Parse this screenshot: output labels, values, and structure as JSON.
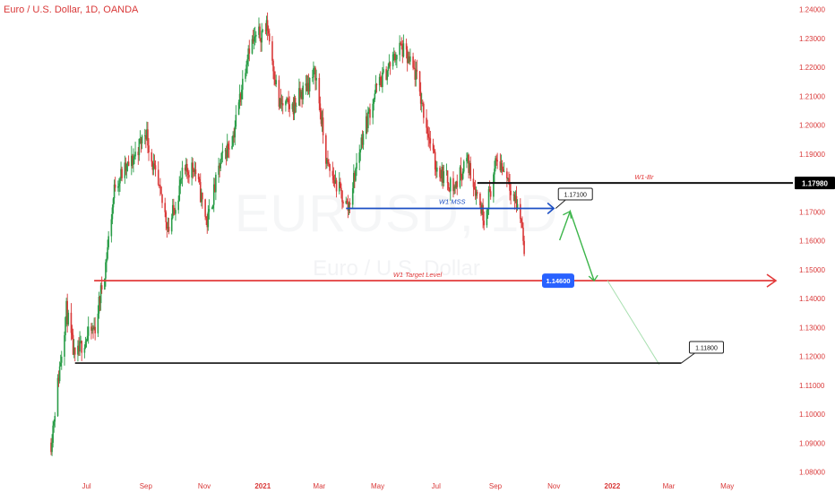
{
  "chart_title": "Euro / U.S. Dollar, 1D, OANDA",
  "watermark": {
    "symbol": "EURUSD, 1D",
    "name": "Euro / U.S. Dollar"
  },
  "colors": {
    "up": "#2a9d48",
    "down": "#d93838",
    "axis_text": "#d93838",
    "target": "#e23a3a",
    "mss": "#1c4fc4",
    "breaker": "#111111",
    "projection": "#3cb54a",
    "label_blue": "#2962ff"
  },
  "chart_data": {
    "type": "candlestick",
    "title": "Euro / U.S. Dollar, 1D, OANDA",
    "ylim": [
      1.08,
      1.24
    ],
    "y_ticks": [
      "1.08000",
      "1.09000",
      "1.10000",
      "1.11000",
      "1.12000",
      "1.13000",
      "1.14000",
      "1.15000",
      "1.16000",
      "1.17000",
      "1.18000",
      "1.19000",
      "1.20000",
      "1.21000",
      "1.22000",
      "1.23000",
      "1.24000"
    ],
    "x_ticks": [
      "Jul",
      "Sep",
      "Nov",
      "2021",
      "Mar",
      "May",
      "Jul",
      "Sep",
      "Nov",
      "2022",
      "Mar",
      "May"
    ],
    "x_range": [
      "2020-05-25",
      "2022-06-15"
    ],
    "price_path": [
      [
        "2020-05-25",
        1.09
      ],
      [
        "2020-06-03",
        1.116
      ],
      [
        "2020-06-10",
        1.136
      ],
      [
        "2020-06-19",
        1.118
      ],
      [
        "2020-06-26",
        1.124
      ],
      [
        "2020-07-10",
        1.13
      ],
      [
        "2020-07-21",
        1.152
      ],
      [
        "2020-07-31",
        1.18
      ],
      [
        "2020-08-17",
        1.187
      ],
      [
        "2020-09-01",
        1.198
      ],
      [
        "2020-09-10",
        1.183
      ],
      [
        "2020-09-25",
        1.164
      ],
      [
        "2020-10-09",
        1.182
      ],
      [
        "2020-10-21",
        1.186
      ],
      [
        "2020-11-04",
        1.166
      ],
      [
        "2020-11-18",
        1.187
      ],
      [
        "2020-12-01",
        1.196
      ],
      [
        "2020-12-10",
        1.213
      ],
      [
        "2020-12-17",
        1.227
      ],
      [
        "2021-01-06",
        1.234
      ],
      [
        "2021-01-18",
        1.207
      ],
      [
        "2021-02-01",
        1.206
      ],
      [
        "2021-02-25",
        1.218
      ],
      [
        "2021-03-09",
        1.186
      ],
      [
        "2021-03-31",
        1.171
      ],
      [
        "2021-04-15",
        1.196
      ],
      [
        "2021-04-29",
        1.212
      ],
      [
        "2021-05-25",
        1.227
      ],
      [
        "2021-06-10",
        1.217
      ],
      [
        "2021-06-30",
        1.186
      ],
      [
        "2021-07-20",
        1.178
      ],
      [
        "2021-08-02",
        1.188
      ],
      [
        "2021-08-20",
        1.168
      ],
      [
        "2021-09-03",
        1.188
      ],
      [
        "2021-09-14",
        1.182
      ],
      [
        "2021-09-28",
        1.167
      ],
      [
        "2021-10-01",
        1.158
      ]
    ],
    "annotations": {
      "breaker": {
        "label": "W1-Br",
        "price": 1.1798,
        "price_label": "1.17980",
        "from": "2021-08-13",
        "to": "2022-06-15"
      },
      "mss": {
        "label": "W1 MSS",
        "price": 1.171,
        "from": "2021-03-29",
        "to": "2021-10-31"
      },
      "mss_callout": {
        "text": "1.17100",
        "date": "2021-11-01",
        "price": 1.171
      },
      "target": {
        "label": "W1 Target Level",
        "price": 1.146,
        "price_label": "1.14600",
        "from": "2020-07-09",
        "to": "2022-06-15"
      },
      "low_line": {
        "from_date": "2020-06-19",
        "from_price": 1.1175,
        "to_date": "2022-03-14",
        "to_price": 1.1175
      },
      "low_callout": {
        "text": "1.11800",
        "date": "2022-03-15",
        "price": 1.118
      },
      "projection": [
        [
          "2021-11-07",
          1.16
        ],
        [
          "2021-11-18",
          1.17
        ],
        [
          "2021-12-13",
          1.146
        ]
      ],
      "projection_extension": [
        [
          "2021-12-27",
          1.146
        ],
        [
          "2022-02-19",
          1.117
        ]
      ]
    }
  }
}
